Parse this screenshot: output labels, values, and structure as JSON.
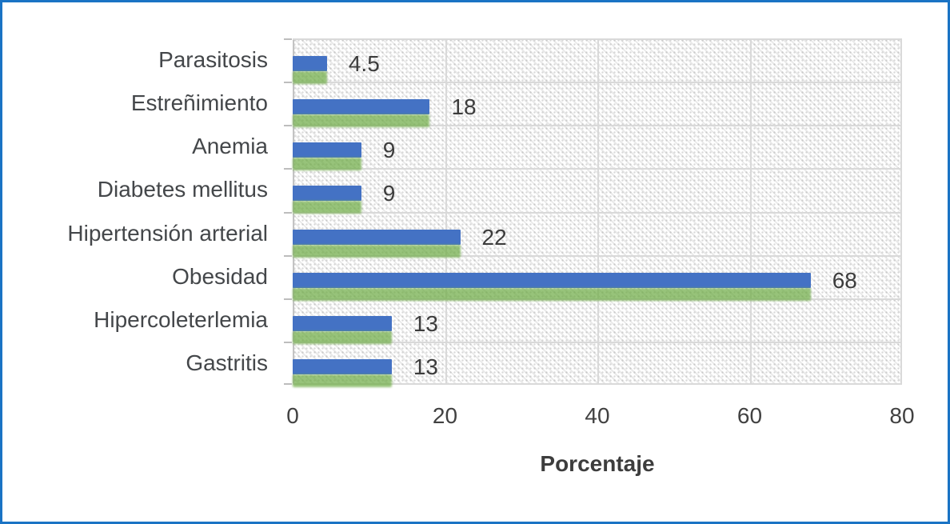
{
  "chart_data": {
    "type": "bar",
    "orientation": "horizontal",
    "title": "",
    "xlabel": "Porcentaje",
    "ylabel": "",
    "categories": [
      "Parasitosis",
      "Estreñimiento",
      "Anemia",
      "Diabetes mellitus",
      "Hipertensión arterial",
      "Obesidad",
      "Hipercoleterlemia",
      "Gastritis"
    ],
    "values": [
      4.5,
      18,
      9,
      9,
      22,
      68,
      13,
      13
    ],
    "value_labels": [
      "4.5",
      "18",
      "9",
      "9",
      "22",
      "68",
      "13",
      "13"
    ],
    "x_ticks": [
      "0",
      "20",
      "40",
      "60",
      "80"
    ],
    "xlim": [
      0,
      80
    ],
    "grid": true,
    "legend": "none",
    "plot_fill": "dotted-diagonal-hatch",
    "colors": {
      "bar": "#4472c4",
      "bar_shadow": "#70ad47",
      "gridline": "#d9d9d9",
      "text": "#404040",
      "frame_border": "#1a73c4",
      "hatch": "#c8c8c8"
    }
  }
}
